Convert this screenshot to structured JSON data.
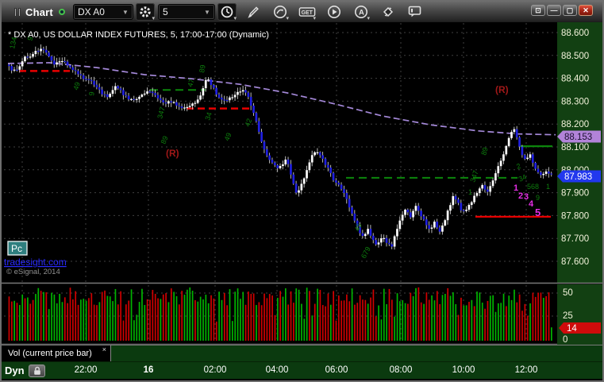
{
  "window": {
    "title": "Chart",
    "controls": {
      "popup": "⊡",
      "minimize": "—",
      "maximize": "▢",
      "close": "✕"
    }
  },
  "toolbar": {
    "symbol": "DX A0",
    "interval": "5",
    "get_label": "GET",
    "alerts_label": "A",
    "icon_names": [
      "gear-icon",
      "clock-icon",
      "pencil-icon",
      "curve-arrow-icon",
      "get-icon",
      "play-icon",
      "alerts-icon",
      "format-icon",
      "comment-icon"
    ]
  },
  "chart": {
    "header": "* DX A0, US DOLLAR INDEX FUTURES, 5, 17:00-17:00 (Dynamic)",
    "watermark": {
      "badge": "Pc",
      "link": "tradesight.com",
      "copyright": "© eSignal, 2014"
    },
    "colors": {
      "up_candle": "#ffffff",
      "down_candle": "#1f1fe0",
      "wick": "#cccccc",
      "ma_line": "#a488d8",
      "axis_bg": "#124012",
      "axis_text": "#f2f2da",
      "grid": "#3f3f3f",
      "red_level": "#e80000",
      "green_level": "#0c860c",
      "annotation_green": "#0d7d0d",
      "wave_magenta": "#e52ee5",
      "r_label": "#a01818",
      "last_price_badge": "#2238ee",
      "ma_price_badge": "#b283d9",
      "volume_badge": "#cf0b0b",
      "vol_up": "#00b400",
      "vol_down": "#d00000"
    }
  },
  "chart_data": {
    "type": "candlestick",
    "symbol": "DX A0",
    "description": "US DOLLAR INDEX FUTURES",
    "interval_minutes": 5,
    "session": "17:00-17:00",
    "mode": "Dynamic",
    "last_price": 87.983,
    "ma_last": 88.153,
    "y_ticks": [
      "88.600",
      "88.500",
      "88.400",
      "88.300",
      "88.200",
      "88.100",
      "88.000",
      "87.900",
      "87.800",
      "87.700",
      "87.600"
    ],
    "y_range": [
      87.6,
      88.6
    ],
    "x_labels": [
      {
        "t": "22:00",
        "x": 106
      },
      {
        "t": "16",
        "x": 185,
        "bold": true
      },
      {
        "t": "02:00",
        "x": 269
      },
      {
        "t": "04:00",
        "x": 347
      },
      {
        "t": "06:00",
        "x": 422
      },
      {
        "t": "08:00",
        "x": 503
      },
      {
        "t": "10:00",
        "x": 582
      },
      {
        "t": "12:00",
        "x": 661
      }
    ],
    "extra_gridline_x": 26,
    "price_path": [
      [
        8,
        88.46
      ],
      [
        12,
        88.43
      ],
      [
        18,
        88.44
      ],
      [
        24,
        88.47
      ],
      [
        30,
        88.5
      ],
      [
        36,
        88.49
      ],
      [
        42,
        88.52
      ],
      [
        50,
        88.53
      ],
      [
        58,
        88.5
      ],
      [
        64,
        88.46
      ],
      [
        70,
        88.48
      ],
      [
        78,
        88.47
      ],
      [
        86,
        88.45
      ],
      [
        94,
        88.42
      ],
      [
        102,
        88.4
      ],
      [
        110,
        88.39
      ],
      [
        118,
        88.36
      ],
      [
        126,
        88.33
      ],
      [
        134,
        88.32
      ],
      [
        142,
        88.36
      ],
      [
        150,
        88.34
      ],
      [
        158,
        88.31
      ],
      [
        166,
        88.3
      ],
      [
        174,
        88.32
      ],
      [
        182,
        88.34
      ],
      [
        190,
        88.33
      ],
      [
        198,
        88.31
      ],
      [
        206,
        88.29
      ],
      [
        214,
        88.3
      ],
      [
        222,
        88.28
      ],
      [
        230,
        88.27
      ],
      [
        238,
        88.28
      ],
      [
        246,
        88.31
      ],
      [
        252,
        88.35
      ],
      [
        258,
        88.41
      ],
      [
        262,
        88.38
      ],
      [
        268,
        88.34
      ],
      [
        274,
        88.31
      ],
      [
        280,
        88.3
      ],
      [
        288,
        88.32
      ],
      [
        296,
        88.34
      ],
      [
        304,
        88.35
      ],
      [
        310,
        88.31
      ],
      [
        316,
        88.25
      ],
      [
        322,
        88.18
      ],
      [
        328,
        88.1
      ],
      [
        334,
        88.06
      ],
      [
        340,
        88.03
      ],
      [
        346,
        88.0
      ],
      [
        352,
        88.02
      ],
      [
        358,
        88.05
      ],
      [
        364,
        87.97
      ],
      [
        370,
        87.9
      ],
      [
        376,
        87.93
      ],
      [
        382,
        87.99
      ],
      [
        388,
        88.05
      ],
      [
        394,
        88.08
      ],
      [
        400,
        88.07
      ],
      [
        406,
        88.03
      ],
      [
        412,
        87.99
      ],
      [
        418,
        87.95
      ],
      [
        424,
        87.93
      ],
      [
        430,
        87.9
      ],
      [
        436,
        87.85
      ],
      [
        442,
        87.79
      ],
      [
        448,
        87.74
      ],
      [
        454,
        87.71
      ],
      [
        460,
        87.74
      ],
      [
        466,
        87.7
      ],
      [
        472,
        87.67
      ],
      [
        478,
        87.71
      ],
      [
        484,
        87.68
      ],
      [
        490,
        87.66
      ],
      [
        496,
        87.73
      ],
      [
        502,
        87.79
      ],
      [
        508,
        87.83
      ],
      [
        514,
        87.79
      ],
      [
        520,
        87.85
      ],
      [
        526,
        87.81
      ],
      [
        532,
        87.77
      ],
      [
        538,
        87.74
      ],
      [
        544,
        87.77
      ],
      [
        550,
        87.73
      ],
      [
        556,
        87.76
      ],
      [
        562,
        87.83
      ],
      [
        568,
        87.89
      ],
      [
        574,
        87.85
      ],
      [
        580,
        87.81
      ],
      [
        586,
        87.84
      ],
      [
        592,
        87.87
      ],
      [
        598,
        87.9
      ],
      [
        604,
        87.93
      ],
      [
        610,
        87.9
      ],
      [
        616,
        87.94
      ],
      [
        622,
        87.99
      ],
      [
        628,
        88.04
      ],
      [
        634,
        88.1
      ],
      [
        640,
        88.16
      ],
      [
        644,
        88.19
      ],
      [
        648,
        88.14
      ],
      [
        652,
        88.09
      ],
      [
        656,
        88.06
      ],
      [
        660,
        88.04
      ],
      [
        664,
        88.07
      ],
      [
        668,
        88.03
      ],
      [
        672,
        88.0
      ],
      [
        676,
        87.98
      ],
      [
        680,
        87.97
      ],
      [
        684,
        88.0
      ],
      [
        688,
        87.99
      ],
      [
        694,
        87.983
      ]
    ],
    "moving_average": [
      [
        8,
        88.465
      ],
      [
        60,
        88.468
      ],
      [
        120,
        88.447
      ],
      [
        180,
        88.416
      ],
      [
        240,
        88.398
      ],
      [
        300,
        88.374
      ],
      [
        360,
        88.336
      ],
      [
        420,
        88.288
      ],
      [
        480,
        88.235
      ],
      [
        540,
        88.197
      ],
      [
        600,
        88.17
      ],
      [
        650,
        88.157
      ],
      [
        698,
        88.153
      ]
    ],
    "levels": {
      "red_dashed": [
        {
          "x1": 22,
          "x2": 86,
          "price": 88.432
        },
        {
          "x1": 233,
          "x2": 312,
          "price": 88.268
        }
      ],
      "green_dashed": [
        {
          "x1": 187,
          "x2": 257,
          "price": 88.349
        },
        {
          "x1": 434,
          "x2": 650,
          "price": 87.965
        }
      ],
      "green_solid": [
        {
          "x1": 653,
          "x2": 694,
          "price": 88.103
        }
      ],
      "red_solid": [
        {
          "x1": 597,
          "x2": 692,
          "price": 87.795
        }
      ]
    },
    "annotations": {
      "resistance": [
        {
          "t": "(R)",
          "x": 207,
          "y": 197
        },
        {
          "t": "(R)",
          "x": 622,
          "y": 117
        }
      ],
      "wave_numbers": [
        {
          "t": "1",
          "x": 645,
          "y": 240
        },
        {
          "t": "2",
          "x": 651,
          "y": 250
        },
        {
          "t": "3",
          "x": 658,
          "y": 251
        },
        {
          "t": "4",
          "x": 664,
          "y": 260
        },
        {
          "t": "5",
          "x": 672,
          "y": 272
        }
      ],
      "green_marks": [
        {
          "t": "134",
          "x": 16,
          "y": 62,
          "r": -78
        },
        {
          "t": "9",
          "x": 38,
          "y": 52,
          "r": -70
        },
        {
          "t": "49",
          "x": 96,
          "y": 114,
          "r": -72
        },
        {
          "t": "9",
          "x": 116,
          "y": 121,
          "r": -80
        },
        {
          "t": "347",
          "x": 202,
          "y": 150,
          "r": -75
        },
        {
          "t": "89",
          "x": 206,
          "y": 182,
          "r": -68
        },
        {
          "t": "47",
          "x": 240,
          "y": 110,
          "r": -74
        },
        {
          "t": "89",
          "x": 255,
          "y": 92,
          "r": -80
        },
        {
          "t": "34",
          "x": 262,
          "y": 152,
          "r": -72
        },
        {
          "t": "49",
          "x": 286,
          "y": 178,
          "r": -68
        },
        {
          "t": "42",
          "x": 312,
          "y": 160,
          "r": -70
        },
        {
          "t": "45",
          "x": 450,
          "y": 292,
          "r": -66
        },
        {
          "t": "679",
          "x": 458,
          "y": 326,
          "r": -62
        },
        {
          "t": "89",
          "x": 610,
          "y": 196,
          "r": -74
        },
        {
          "t": "347",
          "x": 596,
          "y": 230,
          "r": -72
        },
        {
          "t": "1",
          "x": 588,
          "y": 245,
          "r": 0
        },
        {
          "t": "2",
          "x": 650,
          "y": 213,
          "r": -20
        },
        {
          "t": "34",
          "x": 653,
          "y": 229,
          "r": -25
        },
        {
          "t": "568",
          "x": 662,
          "y": 238,
          "r": 0
        },
        {
          "t": "9",
          "x": 673,
          "y": 252,
          "r": 0
        },
        {
          "t": "1",
          "x": 686,
          "y": 238,
          "r": 0
        }
      ]
    },
    "volume": {
      "current": 14,
      "ticks": [
        {
          "v": "50",
          "y": 372
        },
        {
          "v": "25",
          "y": 401
        },
        {
          "v": "0",
          "y": 431
        }
      ]
    }
  },
  "volume_pane": {
    "tab_label": "Vol (current price bar)",
    "tab_close": "×"
  },
  "bottom": {
    "mode_label": "Dyn"
  }
}
